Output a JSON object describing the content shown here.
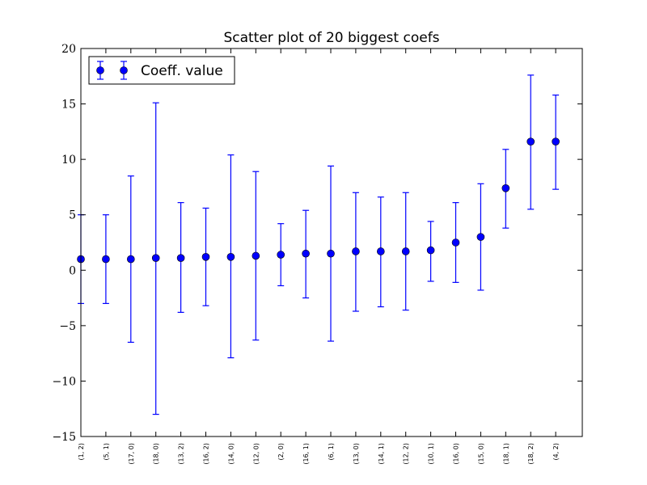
{
  "chart_data": {
    "type": "scatter",
    "title": "Scatter plot of 20 biggest coefs",
    "xlabel": "",
    "ylabel": "",
    "ylim": [
      -15,
      20
    ],
    "yticks": [
      20,
      15,
      10,
      5,
      0,
      -5,
      -10,
      -15
    ],
    "ytick_labels": [
      "20",
      "15",
      "10",
      "5",
      "0",
      "−5",
      "−10",
      "−15"
    ],
    "grid": false,
    "legend_position": "top-left",
    "marker_color": "#0000ff",
    "categories": [
      "(1, 2)",
      "(5, 1)",
      "(17, 0)",
      "(18, 0)",
      "(13, 2)",
      "(16, 2)",
      "(14, 0)",
      "(12, 0)",
      "(2, 0)",
      "(16, 1)",
      "(6, 1)",
      "(13, 0)",
      "(14, 1)",
      "(12, 2)",
      "(10, 1)",
      "(16, 0)",
      "(15, 0)",
      "(18, 1)",
      "(18, 2)",
      "(4, 2)"
    ],
    "series": [
      {
        "name": "Coeff. value",
        "values": [
          1.0,
          1.0,
          1.0,
          1.1,
          1.1,
          1.2,
          1.2,
          1.3,
          1.4,
          1.5,
          1.5,
          1.7,
          1.7,
          1.7,
          1.8,
          2.5,
          3.0,
          7.4,
          11.6,
          11.6
        ],
        "error_low": [
          -3.0,
          -3.0,
          -6.5,
          -13.0,
          -3.8,
          -3.2,
          -7.9,
          -6.3,
          -1.4,
          -2.5,
          -6.4,
          -3.7,
          -3.3,
          -3.6,
          -1.0,
          -1.1,
          -1.8,
          3.8,
          5.5,
          7.3
        ],
        "error_high": [
          5.0,
          5.0,
          8.5,
          15.1,
          6.1,
          5.6,
          10.4,
          8.9,
          4.2,
          5.4,
          9.4,
          7.0,
          6.6,
          7.0,
          4.4,
          6.1,
          7.8,
          10.9,
          17.6,
          15.8
        ]
      }
    ]
  }
}
